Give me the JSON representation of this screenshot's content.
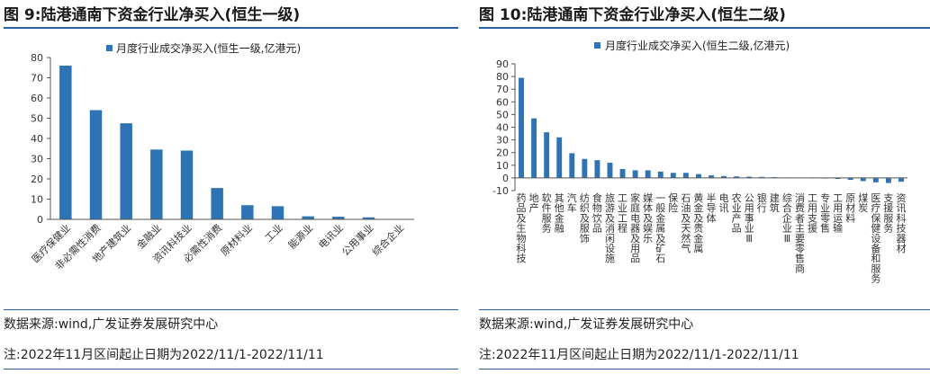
{
  "left": {
    "title": "图 9:陆港通南下资金行业净买入(恒生一级)",
    "source": "数据来源:wind,广发证券发展研究中心",
    "note": "注:2022年11月区间起止日期为2022/11/1-2022/11/11",
    "chart_data": {
      "type": "bar",
      "legend": "月度行业成交净买入(恒生一级,亿港元)",
      "legend_position": "top-center",
      "categories": [
        "医疗保健业",
        "非必需性消费",
        "地产建筑业",
        "金融业",
        "资讯科技业",
        "必需性消费",
        "原材料业",
        "工业",
        "能源业",
        "电讯业",
        "公用事业",
        "综合企业"
      ],
      "values": [
        76,
        54,
        47.5,
        34.5,
        34,
        15.5,
        7,
        6.5,
        1.5,
        1.3,
        1,
        0
      ],
      "ylim": [
        0,
        80
      ],
      "yticks": [
        0,
        10,
        20,
        30,
        40,
        50,
        60,
        70,
        80
      ],
      "grid": false,
      "color": "#2e74b5"
    }
  },
  "right": {
    "title": "图 10:陆港通南下资金行业净买入(恒生二级)",
    "source": "数据来源:wind,广发证券发展研究中心",
    "note": "注:2022年11月区间起止日期为2022/11/1-2022/11/11",
    "chart_data": {
      "type": "bar",
      "legend": "月度行业成交净买入(恒生二级,亿港元)",
      "legend_position": "top-center",
      "categories": [
        "药品及生物科技",
        "地产",
        "软件服务",
        "其他金融",
        "汽车",
        "纺织及服饰",
        "食物饮品",
        "旅游及消闲设施",
        "工业工程",
        "家庭电器及用品",
        "媒体及娱乐",
        "一般金属及矿石",
        "保险",
        "石油及天然气",
        "黄金及贵金属",
        "半导体",
        "电讯",
        "农业产品",
        "公用事业Ⅲ",
        "银行",
        "建筑",
        "综合企业Ⅲ",
        "消费者主要零售商",
        "工用支援",
        "专业零售",
        "工用运输",
        "原材料",
        "煤炭",
        "医疗保健设备和服务",
        "支援服务",
        "资讯科技器材"
      ],
      "values": [
        79,
        47,
        36,
        32,
        19.5,
        15,
        14,
        12,
        7,
        6,
        6,
        5,
        4,
        4,
        3,
        2,
        1.5,
        1.2,
        1,
        0.8,
        0.6,
        0.3,
        0,
        -0.3,
        -0.5,
        -0.8,
        -1.5,
        -2.5,
        -3.5,
        -4,
        -3
      ],
      "ylim": [
        -10,
        90
      ],
      "yticks": [
        -10,
        0,
        10,
        20,
        30,
        40,
        50,
        60,
        70,
        80,
        90
      ],
      "grid": false,
      "color": "#2e74b5"
    }
  }
}
